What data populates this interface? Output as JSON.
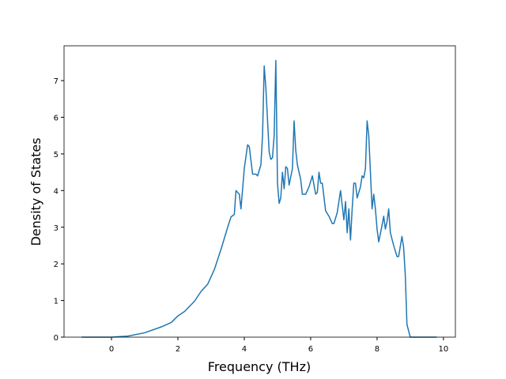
{
  "chart_data": {
    "type": "line",
    "x_label": "Frequency (THz)",
    "y_label": "Density of States",
    "x": [
      -0.9,
      0,
      0.5,
      1.0,
      1.5,
      1.8,
      2.0,
      2.2,
      2.5,
      2.7,
      2.9,
      3.1,
      3.3,
      3.5,
      3.6,
      3.7,
      3.75,
      3.85,
      3.9,
      4.0,
      4.1,
      4.15,
      4.25,
      4.35,
      4.4,
      4.5,
      4.55,
      4.6,
      4.65,
      4.75,
      4.8,
      4.85,
      4.9,
      4.95,
      5.0,
      5.05,
      5.1,
      5.15,
      5.2,
      5.25,
      5.3,
      5.35,
      5.45,
      5.5,
      5.55,
      5.6,
      5.7,
      5.75,
      5.85,
      5.95,
      6.05,
      6.15,
      6.2,
      6.25,
      6.3,
      6.35,
      6.45,
      6.55,
      6.65,
      6.7,
      6.8,
      6.9,
      7.0,
      7.05,
      7.1,
      7.15,
      7.2,
      7.25,
      7.3,
      7.35,
      7.4,
      7.5,
      7.55,
      7.6,
      7.65,
      7.7,
      7.75,
      7.8,
      7.85,
      7.9,
      7.95,
      8.0,
      8.05,
      8.15,
      8.2,
      8.25,
      8.3,
      8.35,
      8.4,
      8.5,
      8.6,
      8.65,
      8.75,
      8.8,
      8.85,
      8.9,
      9.0,
      9.8
    ],
    "series": [
      {
        "color": "#1f77b4",
        "values": [
          0,
          0,
          0.03,
          0.12,
          0.28,
          0.4,
          0.58,
          0.7,
          0.98,
          1.25,
          1.45,
          1.85,
          2.4,
          3.0,
          3.28,
          3.35,
          4.0,
          3.9,
          3.5,
          4.6,
          5.25,
          5.2,
          4.45,
          4.45,
          4.4,
          4.7,
          5.5,
          7.4,
          6.8,
          5.05,
          4.85,
          4.9,
          5.5,
          7.55,
          4.2,
          3.65,
          3.8,
          4.5,
          4.05,
          4.65,
          4.6,
          4.15,
          4.6,
          5.9,
          5.1,
          4.7,
          4.3,
          3.9,
          3.9,
          4.1,
          4.4,
          3.9,
          3.95,
          4.5,
          4.2,
          4.2,
          3.45,
          3.3,
          3.1,
          3.1,
          3.4,
          4.0,
          3.2,
          3.7,
          2.85,
          3.5,
          2.65,
          3.5,
          4.2,
          4.2,
          3.8,
          4.1,
          4.4,
          4.35,
          4.6,
          5.9,
          5.5,
          4.5,
          3.5,
          3.9,
          3.5,
          2.95,
          2.6,
          3.05,
          3.3,
          2.95,
          3.15,
          3.5,
          2.85,
          2.5,
          2.2,
          2.2,
          2.75,
          2.45,
          1.7,
          0.35,
          0,
          0
        ]
      }
    ],
    "xlim": [
      -1.43,
      10.36
    ],
    "ylim": [
      0,
      7.95
    ],
    "xticks": [
      0,
      2,
      4,
      6,
      8,
      10
    ],
    "yticks": [
      0,
      1,
      2,
      3,
      4,
      5,
      6,
      7
    ]
  }
}
